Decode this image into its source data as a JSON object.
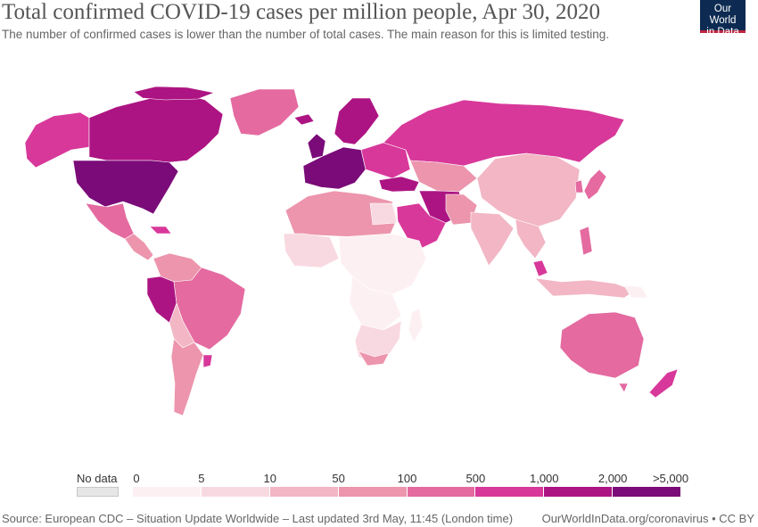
{
  "header": {
    "title": "Total confirmed COVID-19 cases per million people, Apr 30, 2020",
    "subtitle": "The number of confirmed cases is lower than the number of total cases. The main reason for this is limited testing."
  },
  "logo": {
    "line1": "Our World",
    "line2": "in Data",
    "bg_color": "#0d2b52",
    "accent_color": "#c2253f"
  },
  "legend": {
    "no_data_label": "No data",
    "no_data_color": "#e6e6e6",
    "ticks": [
      "0",
      "5",
      "10",
      "50",
      "100",
      "500",
      "1,000",
      "2,000",
      ">5,000"
    ],
    "bins": [
      {
        "range": "0–5",
        "color": "#fdf0f3"
      },
      {
        "range": "5–10",
        "color": "#f9d9e1"
      },
      {
        "range": "10–50",
        "color": "#f2b6c5"
      },
      {
        "range": "50–100",
        "color": "#ec95ad"
      },
      {
        "range": "100–500",
        "color": "#e46aa0"
      },
      {
        "range": "500–1,000",
        "color": "#d8389a"
      },
      {
        "range": "1,000–2,000",
        "color": "#ad1483"
      },
      {
        "range": "2,000–5,000",
        "color": "#7a0b78"
      }
    ]
  },
  "footer": {
    "source": "Source: European CDC – Situation Update Worldwide – Last updated 3rd May, 11:45 (London time)",
    "credit": "OurWorldInData.org/coronavirus • CC BY"
  }
}
